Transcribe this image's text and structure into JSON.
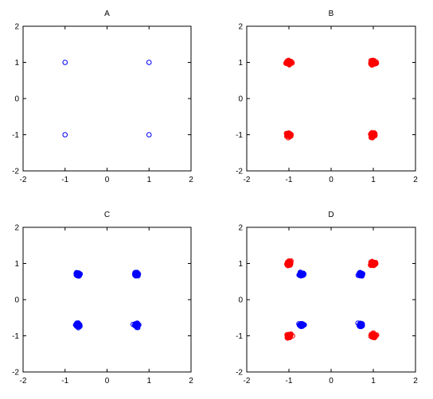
{
  "chart_data": [
    {
      "type": "scatter",
      "title": "A",
      "xlim": [
        -2,
        2
      ],
      "ylim": [
        -2,
        2
      ],
      "xticks": [
        "-2",
        "-1",
        "0",
        "1",
        "2"
      ],
      "yticks": [
        "-2",
        "-1",
        "0",
        "1",
        "2"
      ],
      "grid": false,
      "series": [
        {
          "color": "#0000ff",
          "spread": 0,
          "points": [
            [
              -1,
              1
            ],
            [
              1,
              1
            ],
            [
              -1,
              -1
            ],
            [
              1,
              -1
            ]
          ]
        }
      ]
    },
    {
      "type": "scatter",
      "title": "B",
      "xlim": [
        -2,
        2
      ],
      "ylim": [
        -2,
        2
      ],
      "xticks": [
        "-2",
        "-1",
        "0",
        "1",
        "2"
      ],
      "yticks": [
        "-2",
        "-1",
        "0",
        "1",
        "2"
      ],
      "grid": false,
      "series": [
        {
          "color": "#ff0000",
          "spread": 0.06,
          "points": [
            [
              -1,
              1
            ],
            [
              1,
              1
            ],
            [
              -1,
              -1
            ],
            [
              1,
              -1
            ]
          ]
        }
      ]
    },
    {
      "type": "scatter",
      "title": "C",
      "xlim": [
        -2,
        2
      ],
      "ylim": [
        -2,
        2
      ],
      "xticks": [
        "-2",
        "-1",
        "0",
        "1",
        "2"
      ],
      "yticks": [
        "-2",
        "-1",
        "0",
        "1",
        "2"
      ],
      "grid": false,
      "series": [
        {
          "color": "#0000ff",
          "spread": 0.05,
          "points": [
            [
              -0.7,
              0.7
            ],
            [
              0.7,
              0.7
            ],
            [
              -0.7,
              -0.7
            ],
            [
              0.7,
              -0.7
            ]
          ]
        }
      ]
    },
    {
      "type": "scatter",
      "title": "D",
      "xlim": [
        -2,
        2
      ],
      "ylim": [
        -2,
        2
      ],
      "xticks": [
        "-2",
        "-1",
        "0",
        "1",
        "2"
      ],
      "yticks": [
        "-2",
        "-1",
        "0",
        "1",
        "2"
      ],
      "grid": false,
      "series": [
        {
          "color": "#ff0000",
          "spread": 0.06,
          "points": [
            [
              -1,
              1
            ],
            [
              1,
              1
            ],
            [
              -1,
              -1
            ],
            [
              1,
              -1
            ]
          ]
        },
        {
          "color": "#0000ff",
          "spread": 0.05,
          "points": [
            [
              -0.7,
              0.7
            ],
            [
              0.7,
              0.7
            ],
            [
              -0.7,
              -0.7
            ],
            [
              0.7,
              -0.7
            ]
          ]
        }
      ]
    }
  ]
}
